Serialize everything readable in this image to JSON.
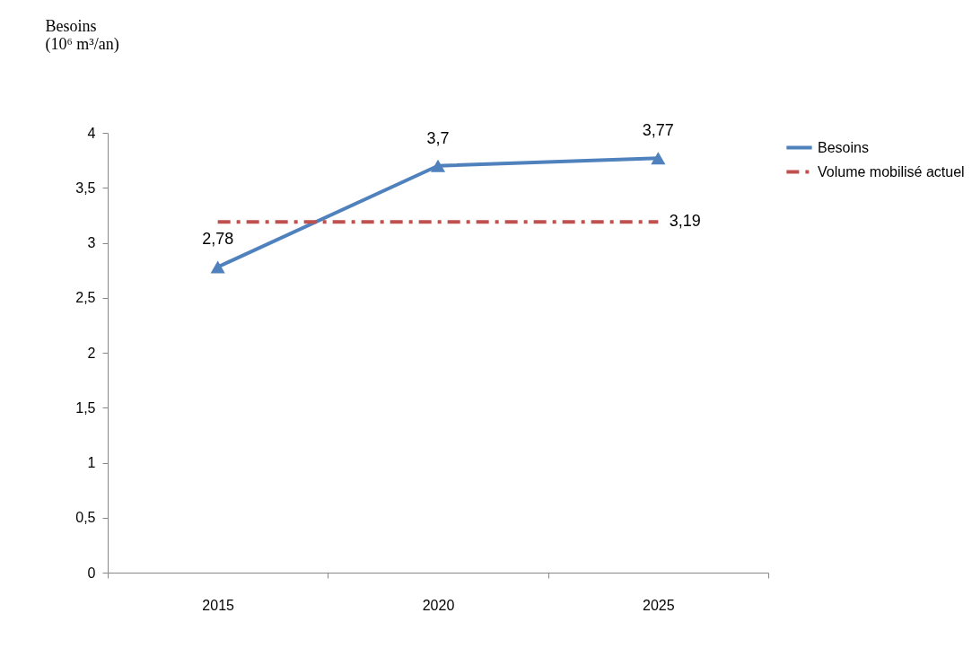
{
  "chart_data": {
    "type": "line",
    "ylabel": "Besoins\n(10⁶ m³/an)",
    "categories": [
      "2015",
      "2020",
      "2025"
    ],
    "series": [
      {
        "name": "Besoins",
        "color": "#4f81bd",
        "values": [
          2.78,
          3.7,
          3.77
        ],
        "value_labels": [
          "2,78",
          "3,7",
          "3,77"
        ],
        "marker": "triangle",
        "line_style": "solid"
      },
      {
        "name": "Volume mobilisé actuel",
        "color": "#c0504d",
        "values": [
          3.19,
          3.19,
          3.19
        ],
        "value_labels": [
          null,
          null,
          "3,19"
        ],
        "marker": "none",
        "line_style": "dashed"
      }
    ],
    "ylim": [
      0,
      4
    ],
    "yticks": [
      0,
      {
        "value": 0.5,
        "label": "0,5"
      },
      1,
      {
        "value": 1.5,
        "label": "1,5"
      },
      2,
      {
        "value": 2.5,
        "label": "2,5"
      },
      3,
      {
        "value": 3.5,
        "label": "3,5"
      },
      4
    ],
    "grid": false,
    "legend": "right"
  }
}
